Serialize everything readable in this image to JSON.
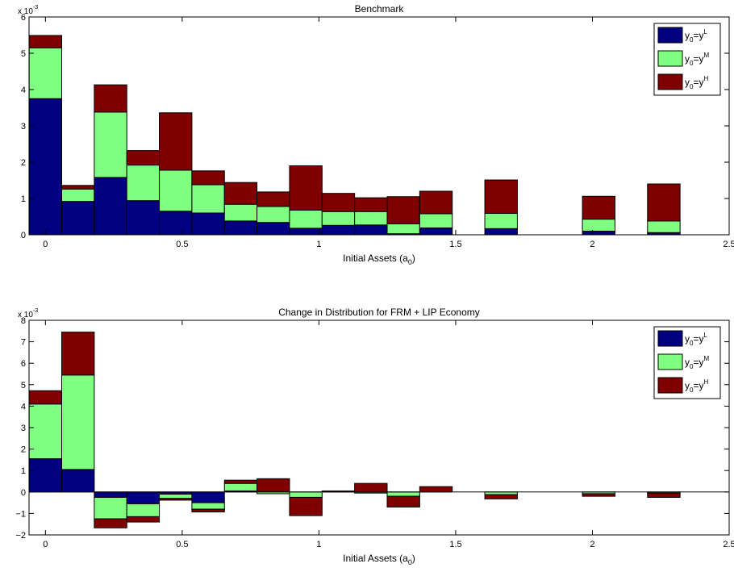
{
  "colors": {
    "low": "#000080",
    "mid": "#80ff80",
    "high": "#800000",
    "axis": "#000000",
    "background": "#ffffff"
  },
  "chart_data": [
    {
      "type": "bar",
      "stacked": true,
      "title": "Benchmark",
      "xlabel_main": "Initial Assets (a",
      "xlabel_sub": "0",
      "xlabel_end": ")",
      "scale_label": "x 10",
      "scale_exp": "-3",
      "xlim": [
        -0.06,
        2.5
      ],
      "ylim": [
        0,
        6
      ],
      "xticks": [
        0,
        0.5,
        1,
        1.5,
        2,
        2.5
      ],
      "xtick_labels": [
        "0",
        "0.5",
        "1",
        "1.5",
        "2",
        "2.5"
      ],
      "yticks": [
        0,
        1,
        2,
        3,
        4,
        5,
        6
      ],
      "ytick_labels": [
        "0",
        "1",
        "2",
        "3",
        "4",
        "5",
        "6"
      ],
      "bar_width": 0.119,
      "x": [
        0,
        0.119,
        0.238,
        0.357,
        0.476,
        0.595,
        0.714,
        0.833,
        0.952,
        1.071,
        1.19,
        1.309,
        1.428,
        1.666,
        2.023,
        2.261
      ],
      "legend_position": "top-right",
      "legend": [
        {
          "main": "y",
          "sub": "0",
          "mid": "=y",
          "sup": "L",
          "color_key": "low"
        },
        {
          "main": "y",
          "sub": "0",
          "mid": "=y",
          "sup": "M",
          "color_key": "mid"
        },
        {
          "main": "y",
          "sub": "0",
          "mid": "=y",
          "sup": "H",
          "color_key": "high"
        }
      ],
      "series": [
        {
          "color_key": "low",
          "values": [
            3.75,
            0.92,
            1.58,
            0.94,
            0.65,
            0.6,
            0.38,
            0.34,
            0.18,
            0.26,
            0.27,
            0.03,
            0.19,
            0.17,
            0.1,
            0.06
          ]
        },
        {
          "color_key": "mid",
          "values": [
            1.4,
            0.34,
            1.8,
            0.98,
            1.13,
            0.78,
            0.46,
            0.44,
            0.5,
            0.38,
            0.37,
            0.27,
            0.39,
            0.42,
            0.33,
            0.32
          ]
        },
        {
          "color_key": "high",
          "values": [
            0.34,
            0.1,
            0.75,
            0.4,
            1.58,
            0.38,
            0.6,
            0.4,
            1.22,
            0.5,
            0.38,
            0.75,
            0.62,
            0.92,
            0.63,
            1.02
          ]
        }
      ]
    },
    {
      "type": "bar",
      "stacked": true,
      "title": "Change in Distribution for FRM + LIP Economy",
      "xlabel_main": "Initial Assets (a",
      "xlabel_sub": "0",
      "xlabel_end": ")",
      "scale_label": "x 10",
      "scale_exp": "-3",
      "xlim": [
        -0.06,
        2.5
      ],
      "ylim": [
        -2,
        8
      ],
      "xticks": [
        0,
        0.5,
        1,
        1.5,
        2,
        2.5
      ],
      "xtick_labels": [
        "0",
        "0.5",
        "1",
        "1.5",
        "2",
        "2.5"
      ],
      "yticks": [
        -2,
        -1,
        0,
        1,
        2,
        3,
        4,
        5,
        6,
        7,
        8
      ],
      "ytick_labels": [
        "−2",
        "−1",
        "0",
        "1",
        "2",
        "3",
        "4",
        "5",
        "6",
        "7",
        "8"
      ],
      "bar_width": 0.119,
      "x": [
        0,
        0.119,
        0.238,
        0.357,
        0.476,
        0.595,
        0.714,
        0.833,
        0.952,
        1.071,
        1.19,
        1.309,
        1.428,
        1.666,
        2.023,
        2.261
      ],
      "legend_position": "top-right",
      "legend": [
        {
          "main": "y",
          "sub": "0",
          "mid": "=y",
          "sup": "L",
          "color_key": "low"
        },
        {
          "main": "y",
          "sub": "0",
          "mid": "=y",
          "sup": "M",
          "color_key": "mid"
        },
        {
          "main": "y",
          "sub": "0",
          "mid": "=y",
          "sup": "H",
          "color_key": "high"
        }
      ],
      "series": [
        {
          "color_key": "low",
          "values": [
            1.55,
            1.05,
            -0.25,
            -0.55,
            -0.1,
            -0.5,
            0.05,
            0.02,
            0.0,
            0.0,
            0.0,
            0.0,
            0.0,
            0.0,
            0.0,
            0.0
          ]
        },
        {
          "color_key": "mid",
          "values": [
            2.55,
            4.4,
            -1.0,
            -0.6,
            -0.2,
            -0.3,
            0.35,
            -0.08,
            -0.25,
            0.0,
            -0.05,
            -0.2,
            0.0,
            -0.12,
            -0.08,
            -0.05
          ]
        },
        {
          "color_key": "high",
          "values": [
            0.62,
            2.0,
            -0.42,
            -0.25,
            -0.08,
            -0.13,
            0.15,
            0.6,
            -0.85,
            0.05,
            0.4,
            -0.5,
            0.25,
            -0.2,
            -0.12,
            -0.2
          ]
        }
      ]
    }
  ]
}
